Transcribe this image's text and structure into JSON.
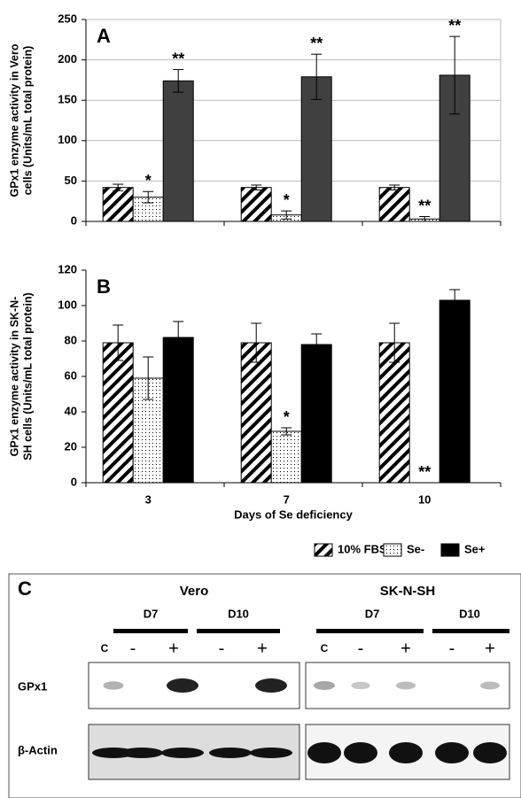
{
  "chart_data": [
    {
      "type": "bar",
      "panel": "A",
      "ylabel": [
        "GPx1 enzyme activity in Vero",
        "cells (Units/mL total protein)"
      ],
      "categories": [
        null,
        null,
        null
      ],
      "ylim": [
        0,
        250
      ],
      "yticks": [
        0,
        50,
        100,
        150,
        200,
        250
      ],
      "grid": true,
      "series": [
        {
          "fill": "hatch",
          "color": "#000000",
          "values": [
            42,
            42,
            42
          ],
          "error": [
            4,
            3,
            3
          ],
          "significance": [
            null,
            null,
            null
          ]
        },
        {
          "fill": "dots",
          "color": "#000000",
          "values": [
            30,
            8,
            3
          ],
          "error": [
            7,
            5,
            3
          ],
          "significance": [
            "*",
            "*",
            "**"
          ]
        },
        {
          "fill": "solid",
          "color": "#404040",
          "values": [
            174,
            179,
            181
          ],
          "error": [
            14,
            28,
            48
          ],
          "significance": [
            "**",
            "**",
            "**"
          ]
        }
      ]
    },
    {
      "type": "bar",
      "panel": "B",
      "ylabel": [
        "GPx1 enzyme activity in SK-N-",
        "SH cells (Units/mL total protein)"
      ],
      "xlabel": "Days of Se  deficiency",
      "categories": [
        "3",
        "7",
        "10"
      ],
      "ylim": [
        0,
        120
      ],
      "yticks": [
        0,
        20,
        40,
        60,
        80,
        100,
        120
      ],
      "grid": false,
      "legend": "bottom",
      "series": [
        {
          "name": "10% FBS",
          "fill": "hatch",
          "color": "#000000",
          "values": [
            79,
            79,
            79
          ],
          "error": [
            10,
            11,
            11
          ],
          "significance": [
            null,
            null,
            null
          ]
        },
        {
          "name": "Se-",
          "fill": "dots",
          "color": "#000000",
          "values": [
            59,
            29,
            0
          ],
          "error": [
            12,
            2,
            0
          ],
          "significance": [
            null,
            "*",
            "**"
          ]
        },
        {
          "name": "Se+",
          "fill": "solid",
          "color": "#000000",
          "values": [
            82,
            78,
            103
          ],
          "error": [
            9,
            6,
            6
          ],
          "significance": [
            null,
            null,
            null
          ]
        }
      ]
    }
  ],
  "blot": {
    "label": "C",
    "rows": [
      "GPx1",
      "β-Actin"
    ],
    "panels": [
      {
        "title": "Vero",
        "groups": [
          "D7",
          "D10"
        ],
        "lanes": [
          "C",
          "-",
          "+",
          "-",
          "+"
        ]
      },
      {
        "title": "SK-N-SH",
        "groups": [
          "D7",
          "D10"
        ],
        "lanes": [
          "C",
          "-",
          "+",
          "-",
          "+"
        ]
      }
    ]
  }
}
